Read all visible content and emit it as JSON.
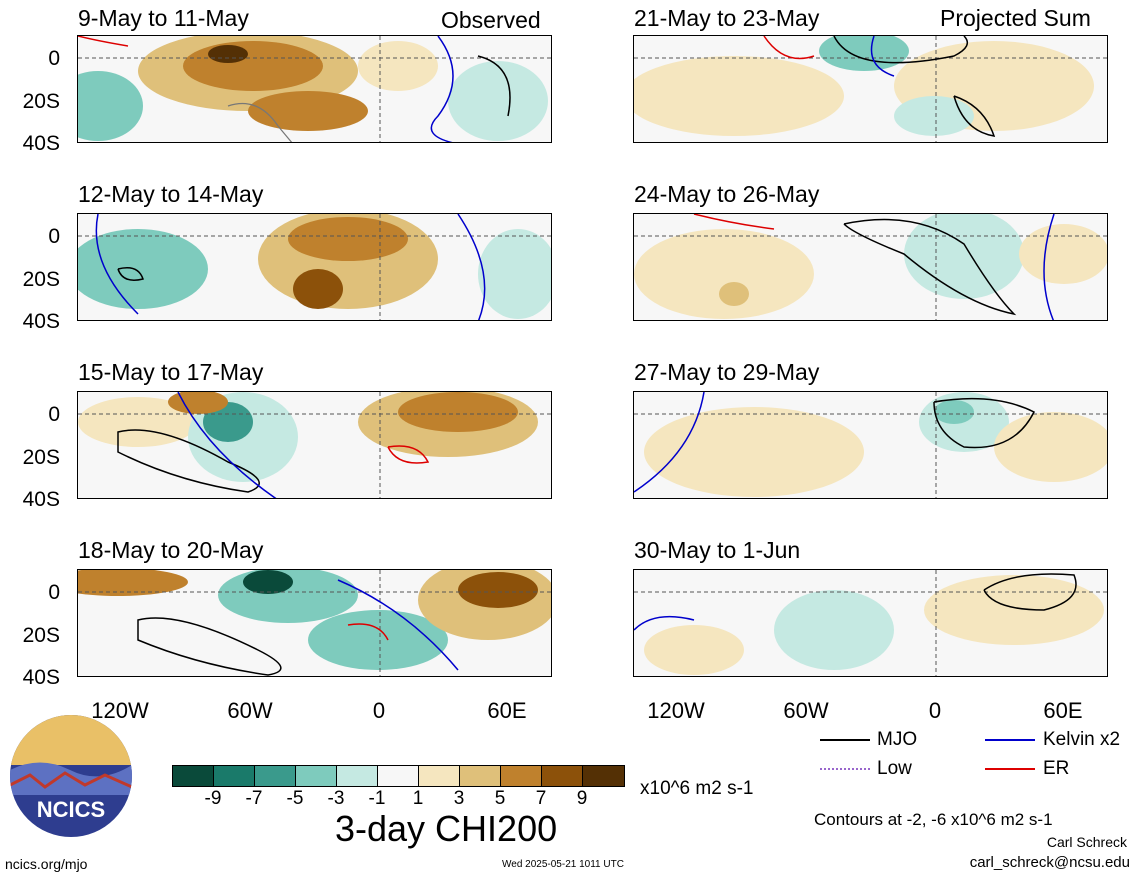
{
  "header": {
    "left_label": "Observed",
    "right_label": "Projected Sum"
  },
  "panels_left": [
    {
      "title": "9-May to 11-May"
    },
    {
      "title": "12-May to 14-May"
    },
    {
      "title": "15-May to 17-May"
    },
    {
      "title": "18-May to 20-May"
    }
  ],
  "panels_right": [
    {
      "title": "21-May to 23-May"
    },
    {
      "title": "24-May to 26-May"
    },
    {
      "title": "27-May to 29-May"
    },
    {
      "title": "30-May to 1-Jun"
    }
  ],
  "y_axis_labels": [
    "0",
    "20S",
    "40S"
  ],
  "x_axis_labels": [
    "120W",
    "60W",
    "0",
    "60E"
  ],
  "colorbar": {
    "colors": [
      "#0a4a3a",
      "#1a7a6a",
      "#3a9a8c",
      "#7ecbbd",
      "#c5e9e2",
      "#f7f7f7",
      "#f5e6bf",
      "#dfc07a",
      "#bf812d",
      "#8c510a",
      "#543005"
    ],
    "ticks": [
      "-9",
      "-7",
      "-5",
      "-3",
      "-1",
      "1",
      "3",
      "5",
      "7",
      "9"
    ],
    "units": "x10^6 m2 s-1",
    "title": "3-day CHI200"
  },
  "legend": {
    "mjo": {
      "label": "MJO",
      "color": "#000000"
    },
    "kelvin": {
      "label": "Kelvin x2",
      "color": "#0000cc"
    },
    "low": {
      "label": "Low",
      "color": "#9966cc"
    },
    "er": {
      "label": "ER",
      "color": "#dd0000"
    }
  },
  "contours_note": "Contours at -2, -6 x10^6 m2 s-1",
  "credit": {
    "name": "Carl Schreck",
    "email": "carl_schreck@ncsu.edu"
  },
  "footer": {
    "url": "ncics.org/mjo",
    "timestamp": "Wed 2025-05-21 1011 UTC"
  },
  "logo": {
    "text": "NCICS"
  }
}
